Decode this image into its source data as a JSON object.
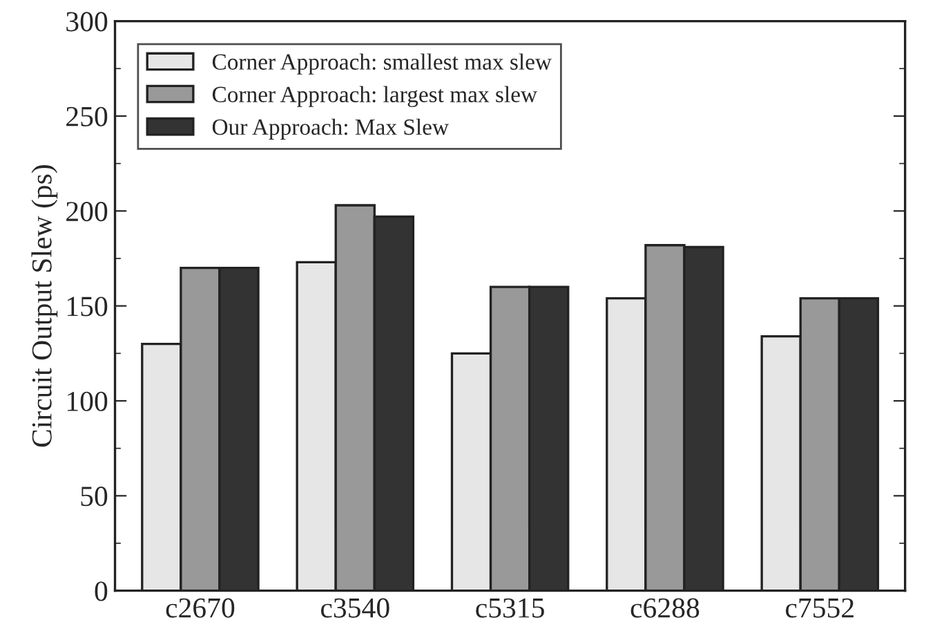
{
  "chart_data": {
    "type": "bar",
    "ylabel": "Circuit Output Slew (ps)",
    "categories": [
      "c2670",
      "c3540",
      "c5315",
      "c6288",
      "c7552"
    ],
    "series": [
      {
        "name": "Corner Approach: smallest max slew",
        "color": "#e6e6e6",
        "values": [
          130,
          173,
          125,
          154,
          134
        ]
      },
      {
        "name": "Corner Approach: largest max slew",
        "color": "#999999",
        "values": [
          170,
          203,
          160,
          182,
          154
        ]
      },
      {
        "name": "Our Approach: Max Slew",
        "color": "#333333",
        "values": [
          170,
          197,
          160,
          181,
          154
        ]
      }
    ],
    "ylim": [
      0,
      300
    ],
    "yticks": [
      0,
      50,
      100,
      150,
      200,
      250,
      300
    ],
    "grid": false,
    "legend": "top left"
  }
}
